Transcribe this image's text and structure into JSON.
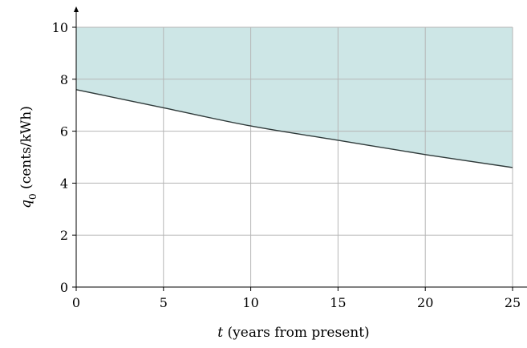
{
  "chart_data": {
    "type": "area",
    "title": "",
    "x": [
      0,
      5,
      10,
      15,
      20,
      25
    ],
    "series": [
      {
        "values": [
          7.6,
          6.9,
          6.2,
          5.65,
          5.1,
          4.6
        ],
        "fill_above_to": 10
      }
    ],
    "xlabel": {
      "var": "t",
      "text": " (years from present)"
    },
    "ylabel": {
      "var": "q",
      "sub": "0",
      "text": " (cents/kWh)"
    },
    "xticks": [
      0,
      5,
      10,
      15,
      20,
      25
    ],
    "yticks": [
      0,
      2,
      4,
      6,
      8,
      10
    ],
    "xlim": [
      0,
      25
    ],
    "ylim": [
      0,
      10
    ],
    "grid": true,
    "colors": {
      "fill": "#cde6e6",
      "line": "#2f3a3a",
      "grid": "#b5b5b5",
      "axis": "#000000"
    }
  }
}
